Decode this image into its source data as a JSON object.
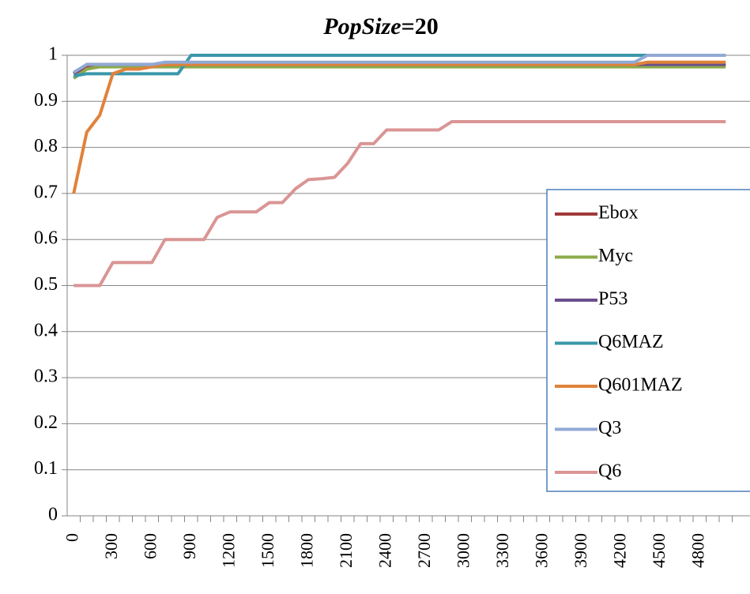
{
  "chart_data": {
    "type": "line",
    "title": {
      "italic": "PopSize",
      "rest": "=20"
    },
    "categories": [
      "0",
      null,
      null,
      "300",
      null,
      null,
      "600",
      null,
      null,
      "900",
      null,
      null,
      "1200",
      null,
      null,
      "1500",
      null,
      null,
      "1800",
      null,
      null,
      "2100",
      null,
      null,
      "2400",
      null,
      null,
      "2700",
      null,
      null,
      "3000",
      null,
      null,
      "3300",
      null,
      null,
      "3600",
      null,
      null,
      "3900",
      null,
      null,
      "4200",
      null,
      null,
      "4500",
      null,
      null,
      "4800",
      null,
      null
    ],
    "ylim": [
      0,
      1
    ],
    "yticks": [
      0,
      0.1,
      0.2,
      0.3,
      0.4,
      0.5,
      0.6,
      0.7,
      0.8,
      0.9,
      1
    ],
    "grid": true,
    "legend": "right",
    "series": [
      {
        "name": "Ebox",
        "color": "#a0393a",
        "values": [
          0.96,
          0.975,
          0.978,
          0.98,
          0.98,
          0.98,
          0.98,
          0.98,
          0.98,
          0.98,
          0.98,
          0.98,
          0.98,
          0.98,
          0.98,
          0.98,
          0.98,
          0.98,
          0.98,
          0.98,
          0.98,
          0.98,
          0.98,
          0.98,
          0.98,
          0.98,
          0.98,
          0.98,
          0.98,
          0.98,
          0.98,
          0.98,
          0.98,
          0.98,
          0.98,
          0.98,
          0.98,
          0.98,
          0.98,
          0.98,
          0.98,
          0.98,
          0.98,
          0.98,
          0.98,
          0.98,
          0.98,
          0.98,
          0.98,
          0.98,
          0.98
        ]
      },
      {
        "name": "Myc",
        "color": "#8aab4a",
        "values": [
          0.95,
          0.97,
          0.975,
          0.975,
          0.975,
          0.975,
          0.975,
          0.975,
          0.975,
          0.975,
          0.975,
          0.975,
          0.975,
          0.975,
          0.975,
          0.975,
          0.975,
          0.975,
          0.975,
          0.975,
          0.975,
          0.975,
          0.975,
          0.975,
          0.975,
          0.975,
          0.975,
          0.975,
          0.975,
          0.975,
          0.975,
          0.975,
          0.975,
          0.975,
          0.975,
          0.975,
          0.975,
          0.975,
          0.975,
          0.975,
          0.975,
          0.975,
          0.975,
          0.975,
          0.975,
          0.975,
          0.975,
          0.975,
          0.975,
          0.975,
          0.975
        ]
      },
      {
        "name": "P53",
        "color": "#6c4f8d",
        "values": [
          0.96,
          0.98,
          0.98,
          0.98,
          0.98,
          0.98,
          0.98,
          0.98,
          0.98,
          0.98,
          0.98,
          0.98,
          0.98,
          0.98,
          0.98,
          0.98,
          0.98,
          0.98,
          0.98,
          0.98,
          0.98,
          0.98,
          0.98,
          0.98,
          0.98,
          0.98,
          0.98,
          0.98,
          0.98,
          0.98,
          0.98,
          0.98,
          0.98,
          0.98,
          0.98,
          0.98,
          0.98,
          0.98,
          0.98,
          0.98,
          0.98,
          0.98,
          0.98,
          0.98,
          0.98,
          0.98,
          0.98,
          0.98,
          0.98,
          0.98,
          0.98
        ]
      },
      {
        "name": "Q6MAZ",
        "color": "#3b97ab",
        "values": [
          0.955,
          0.96,
          0.96,
          0.96,
          0.96,
          0.96,
          0.96,
          0.96,
          0.96,
          1,
          1,
          1,
          1,
          1,
          1,
          1,
          1,
          1,
          1,
          1,
          1,
          1,
          1,
          1,
          1,
          1,
          1,
          1,
          1,
          1,
          1,
          1,
          1,
          1,
          1,
          1,
          1,
          1,
          1,
          1,
          1,
          1,
          1,
          1,
          1,
          1,
          1,
          1,
          1,
          1,
          1
        ]
      },
      {
        "name": "Q601MAZ",
        "color": "#e0823a",
        "values": [
          0.7,
          0.833,
          0.87,
          0.96,
          0.97,
          0.97,
          0.975,
          0.98,
          0.98,
          0.98,
          0.98,
          0.98,
          0.98,
          0.98,
          0.98,
          0.98,
          0.98,
          0.98,
          0.98,
          0.98,
          0.98,
          0.98,
          0.98,
          0.98,
          0.98,
          0.98,
          0.98,
          0.98,
          0.98,
          0.98,
          0.98,
          0.98,
          0.98,
          0.98,
          0.98,
          0.98,
          0.98,
          0.98,
          0.98,
          0.98,
          0.98,
          0.98,
          0.98,
          0.98,
          0.985,
          0.985,
          0.985,
          0.985,
          0.985,
          0.985,
          0.985
        ]
      },
      {
        "name": "Q3",
        "color": "#91a9d4",
        "values": [
          0.963,
          0.98,
          0.98,
          0.98,
          0.98,
          0.98,
          0.98,
          0.985,
          0.985,
          0.985,
          0.985,
          0.985,
          0.985,
          0.985,
          0.985,
          0.985,
          0.985,
          0.985,
          0.985,
          0.985,
          0.985,
          0.985,
          0.985,
          0.985,
          0.985,
          0.985,
          0.985,
          0.985,
          0.985,
          0.985,
          0.985,
          0.985,
          0.985,
          0.985,
          0.985,
          0.985,
          0.985,
          0.985,
          0.985,
          0.985,
          0.985,
          0.985,
          0.985,
          0.985,
          1,
          1,
          1,
          1,
          1,
          1,
          1
        ]
      },
      {
        "name": "Q6",
        "color": "#d99594",
        "values": [
          0.5,
          0.5,
          0.5,
          0.55,
          0.55,
          0.55,
          0.55,
          0.6,
          0.6,
          0.6,
          0.6,
          0.648,
          0.66,
          0.66,
          0.66,
          0.68,
          0.68,
          0.71,
          0.73,
          0.732,
          0.735,
          0.765,
          0.808,
          0.808,
          0.838,
          0.838,
          0.838,
          0.838,
          0.838,
          0.856,
          0.856,
          0.856,
          0.856,
          0.856,
          0.856,
          0.856,
          0.856,
          0.856,
          0.856,
          0.856,
          0.856,
          0.856,
          0.856,
          0.856,
          0.856,
          0.856,
          0.856,
          0.856,
          0.856,
          0.856,
          0.856
        ]
      }
    ]
  }
}
